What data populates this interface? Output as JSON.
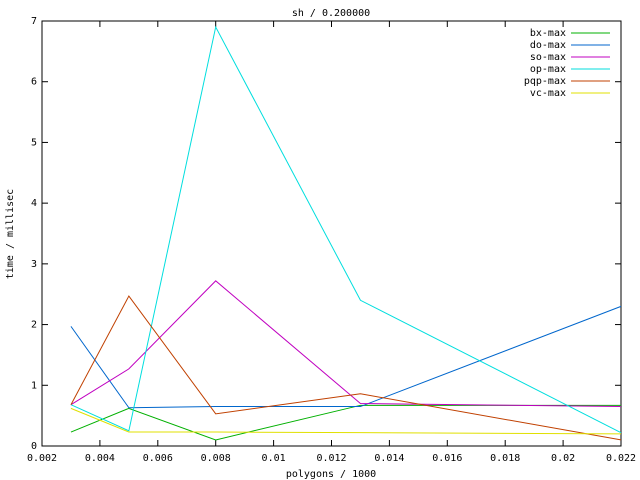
{
  "chart_data": {
    "type": "line",
    "title": "sh / 0.200000",
    "x_label": "polygons / 1000",
    "y_label": "time / millisec",
    "x": [
      0.003,
      0.005,
      0.008,
      0.013,
      0.022
    ],
    "series": [
      {
        "name": "bx-max",
        "color": "#00b000",
        "values": [
          0.23,
          0.62,
          0.1,
          0.67,
          0.67
        ]
      },
      {
        "name": "do-max",
        "color": "#0066cc",
        "values": [
          1.97,
          0.63,
          0.65,
          0.65,
          2.3
        ]
      },
      {
        "name": "so-max",
        "color": "#c000c0",
        "values": [
          0.68,
          1.27,
          2.72,
          0.7,
          0.65
        ]
      },
      {
        "name": "op-max",
        "color": "#00dede",
        "values": [
          0.68,
          0.25,
          6.9,
          2.4,
          0.22
        ]
      },
      {
        "name": "pqp-max",
        "color": "#c04000",
        "values": [
          0.68,
          2.47,
          0.53,
          0.86,
          0.1
        ]
      },
      {
        "name": "vc-max",
        "color": "#e0e000",
        "values": [
          0.62,
          0.23,
          0.23,
          0.22,
          0.2
        ]
      }
    ],
    "xlim": [
      0.002,
      0.022
    ],
    "ylim": [
      0,
      7
    ],
    "xticks": [
      0.002,
      0.004,
      0.006,
      0.008,
      0.01,
      0.012,
      0.014,
      0.016,
      0.018,
      0.02,
      0.022
    ],
    "yticks": [
      0,
      1,
      2,
      3,
      4,
      5,
      6,
      7
    ],
    "grid": false,
    "legend": "top-right"
  }
}
